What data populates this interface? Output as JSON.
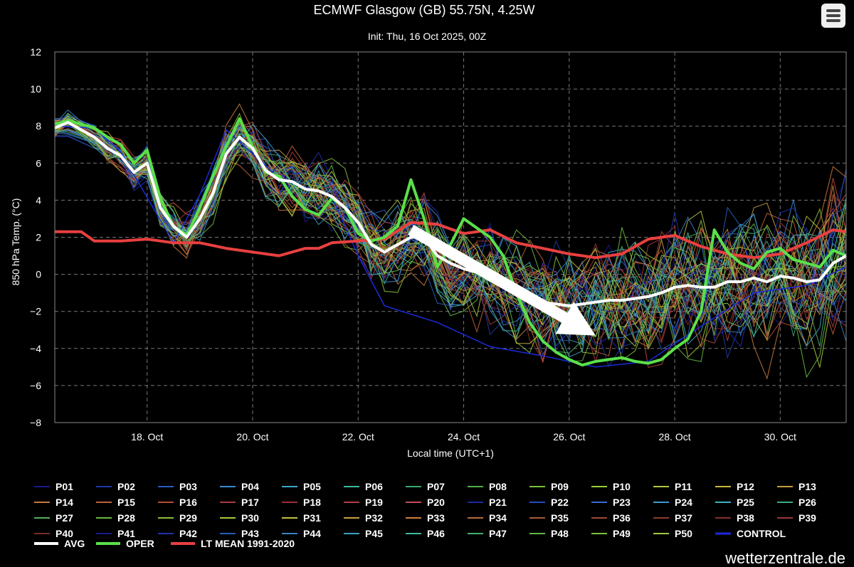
{
  "header": {
    "title": "ECMWF Glasgow (GB) 55.75N, 4.25W",
    "subtitle": "Init: Thu, 16 Oct 2025, 00Z",
    "menu_icon": "hamburger-menu-icon"
  },
  "footer": {
    "credit": "wetterzentrale.de"
  },
  "chart_data": {
    "type": "line",
    "xlabel": "Local time (UTC+1)",
    "ylabel": "850 hPa Temp. (°C)",
    "ylim": [
      -8,
      12
    ],
    "xlim": [
      "2025-10-16T06:00",
      "2025-10-31T06:00"
    ],
    "yticks": [
      -8,
      -6,
      -4,
      -2,
      0,
      2,
      4,
      6,
      8,
      10,
      12
    ],
    "xticks": [
      {
        "x": "2025-10-18T00:00",
        "label": "18. Oct"
      },
      {
        "x": "2025-10-20T00:00",
        "label": "20. Oct"
      },
      {
        "x": "2025-10-22T00:00",
        "label": "22. Oct"
      },
      {
        "x": "2025-10-24T00:00",
        "label": "24. Oct"
      },
      {
        "x": "2025-10-26T00:00",
        "label": "26. Oct"
      },
      {
        "x": "2025-10-28T00:00",
        "label": "28. Oct"
      },
      {
        "x": "2025-10-30T00:00",
        "label": "30. Oct"
      }
    ],
    "grid": true,
    "legend_position": "bottom",
    "ensemble_members": [
      "P01",
      "P02",
      "P03",
      "P04",
      "P05",
      "P06",
      "P07",
      "P08",
      "P09",
      "P10",
      "P11",
      "P12",
      "P13",
      "P14",
      "P15",
      "P16",
      "P17",
      "P18",
      "P19",
      "P20",
      "P21",
      "P22",
      "P23",
      "P24",
      "P25",
      "P26",
      "P27",
      "P28",
      "P29",
      "P30",
      "P31",
      "P32",
      "P33",
      "P34",
      "P35",
      "P36",
      "P37",
      "P38",
      "P39",
      "P40",
      "P41",
      "P42",
      "P43",
      "P44",
      "P45",
      "P46",
      "P47",
      "P48",
      "P49",
      "P50"
    ],
    "ensemble_colors": [
      "#1a1a8c",
      "#1f3aa8",
      "#2a5cc0",
      "#3a8ad0",
      "#3fa8c8",
      "#3eb89a",
      "#3ca870",
      "#52b04a",
      "#78c03a",
      "#9ad03a",
      "#b0c840",
      "#c8b840",
      "#c89a40",
      "#c87a3a",
      "#c0603a",
      "#b84a3a",
      "#a83a3a",
      "#983030",
      "#b04040",
      "#c05050",
      "#1a2aa0",
      "#2a4ac0",
      "#3a6ad0",
      "#3a9ad8",
      "#40b0c0",
      "#3ea88a",
      "#50b060",
      "#68b840",
      "#88c03a",
      "#a8c83a",
      "#c0c040",
      "#c8a040",
      "#c88040",
      "#b86a3a",
      "#a85a3a",
      "#a04a3a",
      "#903a30",
      "#883030",
      "#983a38",
      "#7a2a2a",
      "#1a1a90",
      "#2030b0",
      "#2a5ab8",
      "#3a80c8",
      "#40a0c8",
      "#40b8a0",
      "#48b070",
      "#60b848",
      "#80c040",
      "#a0c840"
    ],
    "series": [
      {
        "name": "CONTROL",
        "color": "#1a2ad8",
        "x": [
          "2025-10-16T06:00",
          "2025-10-17T00:00",
          "2025-10-17T12:00",
          "2025-10-18T12:00",
          "2025-10-19T00:00",
          "2025-10-19T12:00",
          "2025-10-20T12:00",
          "2025-10-21T12:00",
          "2025-10-22T00:00",
          "2025-10-22T12:00",
          "2025-10-23T12:00",
          "2025-10-24T12:00",
          "2025-10-25T12:00",
          "2025-10-26T12:00",
          "2025-10-27T12:00",
          "2025-10-28T12:00",
          "2025-10-29T12:00",
          "2025-10-30T12:00",
          "2025-10-31T06:00"
        ],
        "values": [
          8.0,
          7.9,
          6.6,
          1.7,
          4.3,
          7.8,
          5.2,
          4.2,
          1.0,
          -1.7,
          -2.6,
          -3.9,
          -4.4,
          -5.0,
          -4.7,
          -2.8,
          -1.0,
          -0.6,
          0.4
        ]
      },
      {
        "name": "AVG",
        "color": "#ffffff",
        "x": [
          "2025-10-16T06:00",
          "2025-10-16T12:00",
          "2025-10-17T00:00",
          "2025-10-17T06:00",
          "2025-10-17T12:00",
          "2025-10-17T18:00",
          "2025-10-18T00:00",
          "2025-10-18T06:00",
          "2025-10-18T12:00",
          "2025-10-18T18:00",
          "2025-10-19T00:00",
          "2025-10-19T06:00",
          "2025-10-19T12:00",
          "2025-10-19T18:00",
          "2025-10-20T00:00",
          "2025-10-20T06:00",
          "2025-10-20T12:00",
          "2025-10-20T18:00",
          "2025-10-21T00:00",
          "2025-10-21T06:00",
          "2025-10-21T12:00",
          "2025-10-21T18:00",
          "2025-10-22T00:00",
          "2025-10-22T06:00",
          "2025-10-22T12:00",
          "2025-10-22T18:00",
          "2025-10-23T00:00",
          "2025-10-23T06:00",
          "2025-10-23T12:00",
          "2025-10-23T18:00",
          "2025-10-24T00:00",
          "2025-10-24T06:00",
          "2025-10-24T12:00",
          "2025-10-24T18:00",
          "2025-10-25T00:00",
          "2025-10-25T06:00",
          "2025-10-25T12:00",
          "2025-10-25T18:00",
          "2025-10-26T00:00",
          "2025-10-26T06:00",
          "2025-10-26T12:00",
          "2025-10-26T18:00",
          "2025-10-27T00:00",
          "2025-10-27T06:00",
          "2025-10-27T12:00",
          "2025-10-27T18:00",
          "2025-10-28T00:00",
          "2025-10-28T06:00",
          "2025-10-28T12:00",
          "2025-10-28T18:00",
          "2025-10-29T00:00",
          "2025-10-29T06:00",
          "2025-10-29T12:00",
          "2025-10-29T18:00",
          "2025-10-30T00:00",
          "2025-10-30T06:00",
          "2025-10-30T12:00",
          "2025-10-30T18:00",
          "2025-10-31T00:00",
          "2025-10-31T06:00"
        ],
        "values": [
          7.9,
          8.2,
          7.4,
          6.8,
          6.4,
          5.5,
          6.0,
          3.6,
          2.6,
          2.0,
          3.0,
          4.4,
          6.5,
          7.4,
          6.8,
          5.6,
          5.1,
          5.0,
          4.6,
          4.5,
          4.2,
          3.6,
          2.8,
          1.6,
          1.2,
          1.6,
          2.0,
          2.0,
          1.0,
          0.6,
          0.3,
          0.1,
          -0.2,
          -0.6,
          -0.9,
          -1.2,
          -1.5,
          -1.6,
          -1.7,
          -1.6,
          -1.5,
          -1.4,
          -1.4,
          -1.3,
          -1.2,
          -1.0,
          -0.7,
          -0.6,
          -0.7,
          -0.7,
          -0.4,
          -0.4,
          -0.2,
          -0.4,
          -0.1,
          -0.2,
          -0.4,
          -0.3,
          0.6,
          1.0
        ]
      },
      {
        "name": "OPER",
        "color": "#5ae04a",
        "x": [
          "2025-10-16T06:00",
          "2025-10-16T12:00",
          "2025-10-17T00:00",
          "2025-10-17T06:00",
          "2025-10-17T12:00",
          "2025-10-17T18:00",
          "2025-10-18T00:00",
          "2025-10-18T06:00",
          "2025-10-18T12:00",
          "2025-10-18T18:00",
          "2025-10-19T00:00",
          "2025-10-19T06:00",
          "2025-10-19T12:00",
          "2025-10-19T18:00",
          "2025-10-20T00:00",
          "2025-10-20T06:00",
          "2025-10-20T12:00",
          "2025-10-20T18:00",
          "2025-10-21T00:00",
          "2025-10-21T06:00",
          "2025-10-21T12:00",
          "2025-10-21T18:00",
          "2025-10-22T00:00",
          "2025-10-22T06:00",
          "2025-10-22T12:00",
          "2025-10-22T18:00",
          "2025-10-23T00:00",
          "2025-10-23T06:00",
          "2025-10-23T12:00",
          "2025-10-23T18:00",
          "2025-10-24T00:00",
          "2025-10-24T06:00",
          "2025-10-24T12:00",
          "2025-10-24T18:00",
          "2025-10-25T00:00",
          "2025-10-25T06:00",
          "2025-10-25T12:00",
          "2025-10-25T18:00",
          "2025-10-26T00:00",
          "2025-10-26T06:00",
          "2025-10-26T12:00",
          "2025-10-26T18:00",
          "2025-10-27T00:00",
          "2025-10-27T06:00",
          "2025-10-27T12:00",
          "2025-10-27T18:00",
          "2025-10-28T00:00",
          "2025-10-28T06:00",
          "2025-10-28T12:00",
          "2025-10-28T18:00",
          "2025-10-29T00:00",
          "2025-10-29T06:00",
          "2025-10-29T12:00",
          "2025-10-29T18:00",
          "2025-10-30T00:00",
          "2025-10-30T06:00",
          "2025-10-30T12:00",
          "2025-10-30T18:00",
          "2025-10-31T00:00",
          "2025-10-31T06:00"
        ],
        "values": [
          8.1,
          8.3,
          7.9,
          7.4,
          7.0,
          6.0,
          6.7,
          4.1,
          2.6,
          2.1,
          3.6,
          5.3,
          6.9,
          8.4,
          6.9,
          5.5,
          5.3,
          4.2,
          3.5,
          3.2,
          4.1,
          3.6,
          2.2,
          1.8,
          2.0,
          2.6,
          5.1,
          3.0,
          0.4,
          1.6,
          3.0,
          2.5,
          2.0,
          1.0,
          -1.0,
          -2.6,
          -3.6,
          -4.2,
          -4.6,
          -4.9,
          -4.7,
          -4.6,
          -4.5,
          -4.7,
          -4.8,
          -4.6,
          -4.0,
          -3.5,
          -2.0,
          2.4,
          1.2,
          0.6,
          0.3,
          1.2,
          1.4,
          0.8,
          0.6,
          0.4,
          1.3,
          1.0
        ]
      },
      {
        "name": "LT MEAN 1991-2020",
        "color": "#e84040",
        "x": [
          "2025-10-16T06:00",
          "2025-10-16T18:00",
          "2025-10-17T00:00",
          "2025-10-17T12:00",
          "2025-10-18T00:00",
          "2025-10-18T12:00",
          "2025-10-19T00:00",
          "2025-10-19T12:00",
          "2025-10-20T00:00",
          "2025-10-20T12:00",
          "2025-10-21T00:00",
          "2025-10-21T06:00",
          "2025-10-21T12:00",
          "2025-10-22T00:00",
          "2025-10-22T12:00",
          "2025-10-23T00:00",
          "2025-10-23T12:00",
          "2025-10-24T00:00",
          "2025-10-24T12:00",
          "2025-10-25T00:00",
          "2025-10-25T12:00",
          "2025-10-26T00:00",
          "2025-10-26T12:00",
          "2025-10-27T00:00",
          "2025-10-27T12:00",
          "2025-10-28T00:00",
          "2025-10-28T12:00",
          "2025-10-29T00:00",
          "2025-10-29T12:00",
          "2025-10-30T00:00",
          "2025-10-30T12:00",
          "2025-10-31T00:00",
          "2025-10-31T06:00"
        ],
        "values": [
          2.3,
          2.3,
          1.8,
          1.8,
          1.9,
          1.7,
          1.7,
          1.4,
          1.2,
          1.0,
          1.4,
          1.4,
          1.7,
          1.8,
          1.9,
          2.8,
          2.7,
          2.2,
          2.4,
          1.7,
          1.4,
          1.1,
          0.9,
          1.1,
          1.9,
          2.1,
          1.5,
          1.1,
          0.9,
          1.1,
          1.7,
          2.4,
          2.3
        ]
      }
    ],
    "annotation_arrow": {
      "color": "#ffffff",
      "from": {
        "x": "2025-10-23T00:00",
        "y": 2.4
      },
      "to": {
        "x": "2025-10-26T12:00",
        "y": -3.3
      }
    }
  }
}
